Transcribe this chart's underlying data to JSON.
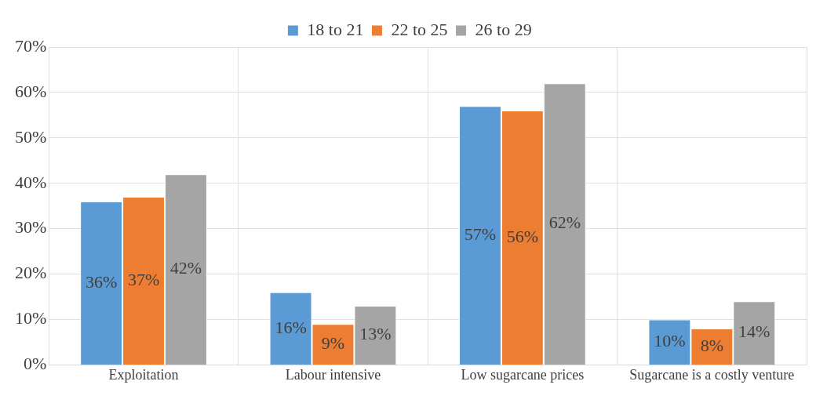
{
  "chart_data": {
    "type": "bar",
    "categories": [
      "Exploitation",
      "Labour intensive",
      "Low sugarcane prices",
      "Sugarcane is a costly venture"
    ],
    "series": [
      {
        "name": "18 to 21",
        "color": "#5b9bd5",
        "values": [
          36,
          16,
          57,
          10
        ],
        "value_labels": [
          "36%",
          "16%",
          "57%",
          "10%"
        ]
      },
      {
        "name": "22 to 25",
        "color": "#ed7d31",
        "values": [
          37,
          9,
          56,
          8
        ],
        "value_labels": [
          "37%",
          "9%",
          "56%",
          "8%"
        ]
      },
      {
        "name": "26 to 29",
        "color": "#a5a5a5",
        "values": [
          42,
          13,
          62,
          14
        ],
        "value_labels": [
          "42%",
          "13%",
          "62%",
          "14%"
        ]
      }
    ],
    "ylim": [
      0,
      70
    ],
    "yticks": [
      {
        "value": 0,
        "label": "0%"
      },
      {
        "value": 10,
        "label": "10%"
      },
      {
        "value": 20,
        "label": "20%"
      },
      {
        "value": 30,
        "label": "30%"
      },
      {
        "value": 40,
        "label": "40%"
      },
      {
        "value": 50,
        "label": "50%"
      },
      {
        "value": 60,
        "label": "60%"
      },
      {
        "value": 70,
        "label": "70%"
      }
    ],
    "grid": true,
    "legend": "top"
  }
}
